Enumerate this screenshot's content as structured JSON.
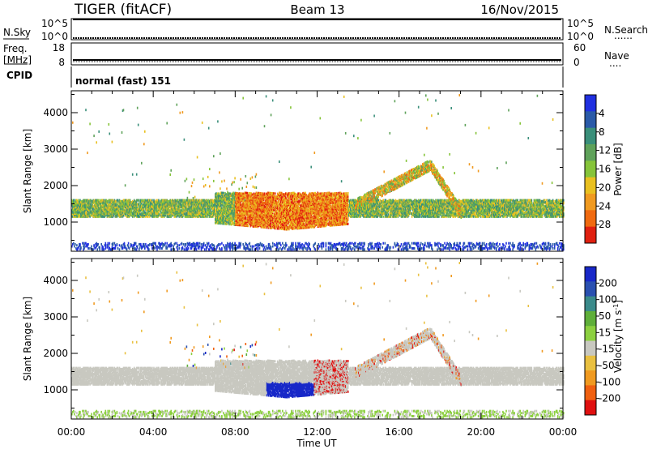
{
  "header": {
    "radar": "TIGER (fitACF)",
    "beam": "Beam 13",
    "date": "16/Nov/2015"
  },
  "status_panels": {
    "nsky_label": "N.Sky",
    "nsearch_label": "N.Search",
    "nsky_ticks": [
      "10^5",
      "10^0"
    ],
    "freq_label_1": "Freq.",
    "freq_label_2": "[MHz]",
    "freq_ticks": [
      "18",
      "8"
    ],
    "nave_label": "Nave",
    "nave_ticks": [
      "60",
      "0"
    ],
    "cpid_label": "CPID",
    "cpid_value": "normal (fast) 151",
    "dots": "......",
    "dots_short": "...."
  },
  "chart_data": [
    {
      "type": "heatmap",
      "panel": "power",
      "ylabel": "Slant Range [km]",
      "xlabel": "Time UT",
      "xlim": [
        0,
        24
      ],
      "ylim": [
        200,
        4600
      ],
      "x_ticks": [
        "00:00",
        "04:00",
        "08:00",
        "12:00",
        "16:00",
        "20:00",
        "00:00"
      ],
      "y_ticks": [
        1000,
        2000,
        3000,
        4000
      ],
      "colorbar": {
        "label": "Power [dB]",
        "ticks": [
          "4",
          "8",
          "12",
          "16",
          "20",
          "24",
          "28"
        ],
        "colors": [
          "#2030e0",
          "#2a5aa8",
          "#3a8f7a",
          "#5fa25a",
          "#86c43a",
          "#e9c020",
          "#f09a20",
          "#f06a10",
          "#e02010"
        ]
      },
      "bands": [
        {
          "name": "low-range ground scatter",
          "t_start": 0.0,
          "t_end": 24.0,
          "range_start": 250,
          "range_end": 400
        },
        {
          "name": "main scatter band",
          "t_start": 0.0,
          "t_end": 24.0,
          "range_start": 1150,
          "range_end": 1600
        },
        {
          "name": "intense scatter",
          "t_start": 8.0,
          "t_end": 13.5,
          "range_start": 750,
          "range_end": 1800
        },
        {
          "name": "rising arc",
          "t_start": 14.0,
          "t_end": 19.0,
          "range_start": 1400,
          "range_end": 2700
        }
      ]
    },
    {
      "type": "heatmap",
      "panel": "velocity",
      "ylabel": "Slant Range [km]",
      "xlabel": "Time UT",
      "xlim": [
        0,
        24
      ],
      "ylim": [
        200,
        4600
      ],
      "x_ticks": [
        "00:00",
        "04:00",
        "08:00",
        "12:00",
        "16:00",
        "20:00",
        "00:00"
      ],
      "y_ticks": [
        1000,
        2000,
        3000,
        4000
      ],
      "colorbar": {
        "label": "Velocity [m s",
        "label_sup": "-1",
        "label_end": "]",
        "ticks": [
          "200",
          "100",
          "50",
          "15",
          "-15",
          "-50",
          "-100",
          "-200"
        ],
        "colors": [
          "#1828c8",
          "#2a50b0",
          "#3a8a8a",
          "#5faf3a",
          "#8cd040",
          "#c8c8c0",
          "#e9c040",
          "#f09a20",
          "#f06010",
          "#e01010"
        ]
      }
    }
  ]
}
